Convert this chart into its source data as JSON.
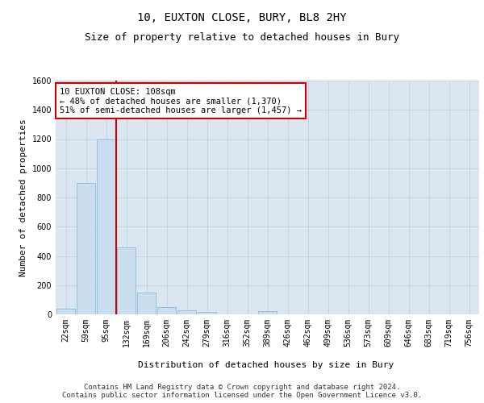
{
  "title_line1": "10, EUXTON CLOSE, BURY, BL8 2HY",
  "title_line2": "Size of property relative to detached houses in Bury",
  "xlabel": "Distribution of detached houses by size in Bury",
  "ylabel": "Number of detached properties",
  "footer_line1": "Contains HM Land Registry data © Crown copyright and database right 2024.",
  "footer_line2": "Contains public sector information licensed under the Open Government Licence v3.0.",
  "annotation_line1": "10 EUXTON CLOSE: 108sqm",
  "annotation_line2": "← 48% of detached houses are smaller (1,370)",
  "annotation_line3": "51% of semi-detached houses are larger (1,457) →",
  "bar_categories": [
    "22sqm",
    "59sqm",
    "95sqm",
    "132sqm",
    "169sqm",
    "206sqm",
    "242sqm",
    "279sqm",
    "316sqm",
    "352sqm",
    "389sqm",
    "426sqm",
    "462sqm",
    "499sqm",
    "536sqm",
    "573sqm",
    "609sqm",
    "646sqm",
    "683sqm",
    "719sqm",
    "756sqm"
  ],
  "bar_values": [
    40,
    900,
    1200,
    460,
    150,
    50,
    25,
    15,
    0,
    0,
    20,
    0,
    0,
    0,
    0,
    0,
    0,
    0,
    0,
    0,
    0
  ],
  "bar_color": "#c9dff0",
  "bar_edge_color": "#7ab4d8",
  "grid_color": "#c8d4e3",
  "background_color": "#dce6f0",
  "vline_color": "#cc0000",
  "annotation_box_color": "#cc0000",
  "ylim": [
    0,
    1600
  ],
  "yticks": [
    0,
    200,
    400,
    600,
    800,
    1000,
    1200,
    1400,
    1600
  ],
  "title_fontsize": 10,
  "subtitle_fontsize": 9,
  "axis_label_fontsize": 8,
  "tick_fontsize": 7,
  "annotation_fontsize": 7.5,
  "footer_fontsize": 6.5
}
